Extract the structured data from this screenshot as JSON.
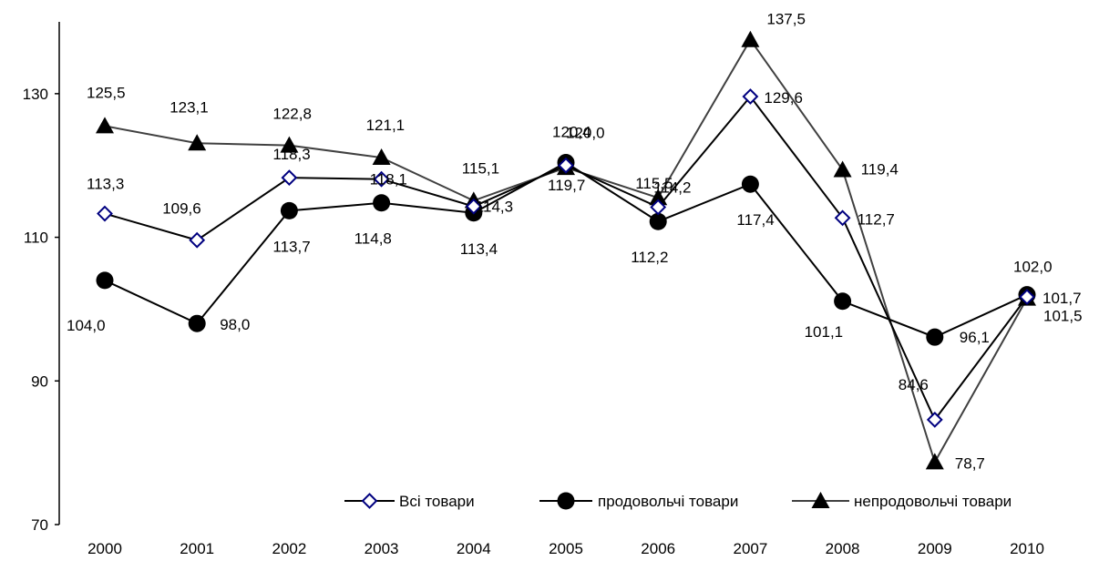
{
  "chart_data": {
    "type": "line",
    "title": "",
    "xlabel": "",
    "ylabel": "",
    "categories": [
      "2000",
      "2001",
      "2002",
      "2003",
      "2004",
      "2005",
      "2006",
      "2007",
      "2008",
      "2009",
      "2010"
    ],
    "ylim": [
      70,
      140
    ],
    "yticks": [
      70,
      90,
      110,
      130
    ],
    "grid": false,
    "legend_position": "bottom-right",
    "series": [
      {
        "name": "Всі товари",
        "marker": "diamond-open",
        "color": "#000000",
        "marker_color": "#000080",
        "values": [
          113.3,
          109.6,
          118.3,
          118.1,
          114.3,
          120.0,
          114.2,
          129.6,
          112.7,
          84.6,
          101.7
        ],
        "labels": [
          "113,3",
          "109,6",
          "118,3",
          "118,1",
          "114,3",
          "120,0",
          "114,2",
          "129,6",
          "112,7",
          "84,6",
          "101,7"
        ]
      },
      {
        "name": "продовольчі товари",
        "marker": "circle",
        "color": "#000000",
        "marker_color": "#000000",
        "values": [
          104.0,
          98.0,
          113.7,
          114.8,
          113.4,
          120.4,
          112.2,
          117.4,
          101.1,
          96.1,
          102.0
        ],
        "labels": [
          "104,0",
          "98,0",
          "113,7",
          "114,8",
          "113,4",
          "120,4",
          "112,2",
          "117,4",
          "101,1",
          "96,1",
          "102,0"
        ]
      },
      {
        "name": "непродовольчі товари",
        "marker": "triangle",
        "color": "#404040",
        "marker_color": "#000000",
        "values": [
          125.5,
          123.1,
          122.8,
          121.1,
          115.1,
          119.7,
          115.5,
          137.5,
          119.4,
          78.7,
          101.5
        ],
        "labels": [
          "125,5",
          "123,1",
          "122,8",
          "121,1",
          "115,1",
          "119,7",
          "115,5",
          "137,5",
          "119,4",
          "78,7",
          "101,5"
        ]
      }
    ]
  }
}
